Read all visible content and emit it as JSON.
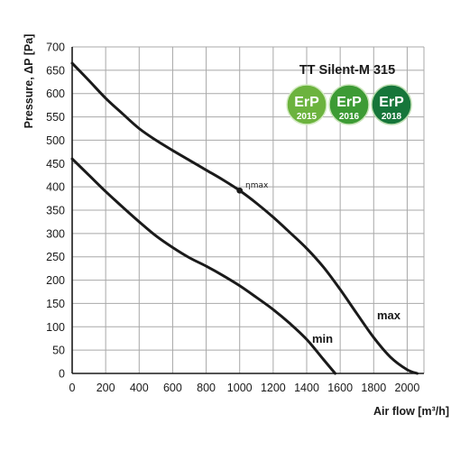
{
  "chart_data": {
    "type": "line",
    "title": "TT Silent-M 315",
    "xlabel": "Air flow [m³/h]",
    "ylabel": "Pressure, ΔP [Pa]",
    "xlim": [
      0,
      2100
    ],
    "ylim": [
      0,
      700
    ],
    "x_ticks": [
      "0",
      "200",
      "400",
      "600",
      "800",
      "1000",
      "1200",
      "1400",
      "1600",
      "1800",
      "2000"
    ],
    "y_ticks": [
      "0",
      "50",
      "100",
      "150",
      "200",
      "250",
      "300",
      "350",
      "400",
      "450",
      "500",
      "550",
      "600",
      "650",
      "700"
    ],
    "grid": true,
    "series": [
      {
        "name": "max",
        "x": [
          0,
          100,
          200,
          300,
          400,
          500,
          600,
          700,
          800,
          900,
          1000,
          1100,
          1200,
          1300,
          1400,
          1500,
          1600,
          1700,
          1800,
          1900,
          2000,
          2060
        ],
        "y": [
          665,
          628,
          590,
          557,
          525,
          500,
          478,
          457,
          436,
          415,
          392,
          365,
          335,
          302,
          268,
          228,
          180,
          128,
          77,
          35,
          8,
          0
        ]
      },
      {
        "name": "min",
        "x": [
          0,
          100,
          200,
          300,
          400,
          500,
          600,
          700,
          800,
          900,
          1000,
          1100,
          1200,
          1300,
          1400,
          1500,
          1570
        ],
        "y": [
          460,
          425,
          390,
          357,
          325,
          295,
          270,
          248,
          230,
          210,
          188,
          163,
          137,
          107,
          73,
          30,
          0
        ]
      }
    ],
    "annotations": [
      {
        "text": "ηmax",
        "x": 1000,
        "y": 392
      }
    ]
  },
  "badges": [
    {
      "top": "ErP",
      "year": "2015",
      "color": "#6cb33e"
    },
    {
      "top": "ErP",
      "year": "2016",
      "color": "#3d9b35"
    },
    {
      "top": "ErP",
      "year": "2018",
      "color": "#16763a"
    }
  ]
}
